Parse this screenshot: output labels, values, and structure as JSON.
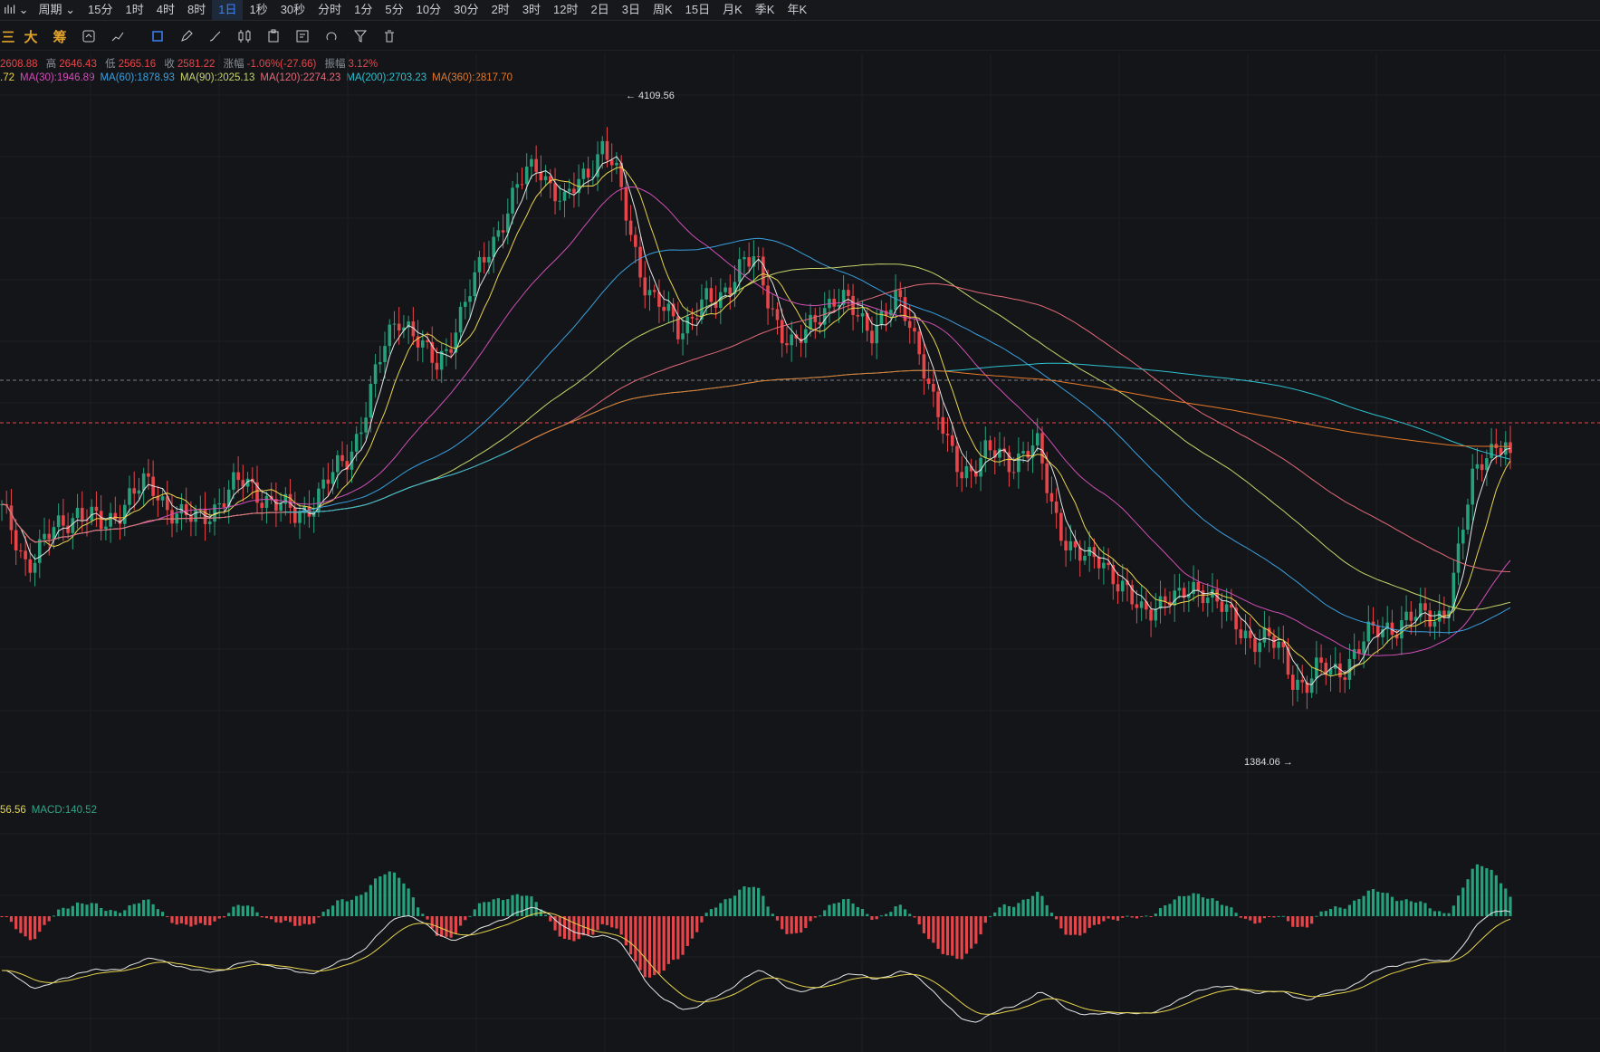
{
  "topbar": {
    "chart_type_icon": "candlestick-type-icon",
    "period_label": "周期",
    "intervals": [
      "15分",
      "1时",
      "4时",
      "8时",
      "1日",
      "1秒",
      "30秒",
      "分时",
      "1分",
      "5分",
      "10分",
      "30分",
      "2时",
      "3时",
      "12时",
      "2日",
      "3日",
      "周K",
      "15日",
      "月K",
      "季K",
      "年K"
    ],
    "active_interval": "1日"
  },
  "toolbar": {
    "text_tools": [
      "三",
      "大",
      "筹"
    ],
    "icons": [
      "compare-icon",
      "indicator-icon",
      "selection-icon",
      "pencil-icon",
      "brush-icon",
      "candle-settings-icon",
      "clipboard-icon",
      "template-icon",
      "magnet-icon",
      "filter-icon",
      "trash-icon"
    ]
  },
  "ohlc": {
    "open_label": "2608.88",
    "high_label": "高",
    "high": "2646.43",
    "low_label": "低",
    "low": "2565.16",
    "close_label": "收",
    "close": "2581.22",
    "change_label": "涨幅",
    "change": "-1.06%(-27.66)",
    "amplitude_label": "振幅",
    "amplitude": "3.12%"
  },
  "ma_legend": [
    {
      "text": ".72",
      "color": "#e8d44d"
    },
    {
      "text": "MA(30):1946.89",
      "color": "#d04fb7"
    },
    {
      "text": "MA(60):1878.93",
      "color": "#3aa0e0"
    },
    {
      "text": "MA(90):2025.13",
      "color": "#c8d46a"
    },
    {
      "text": "MA(120):2274.23",
      "color": "#e36a7a"
    },
    {
      "text": "MA(200):2703.23",
      "color": "#2ec2d0"
    },
    {
      "text": "MA(360):2817.70",
      "color": "#e8792a"
    }
  ],
  "macd_legend": [
    {
      "text": "56.56",
      "color": "#e8d44d"
    },
    {
      "text": "MACD:140.52",
      "color": "#2ea88a"
    }
  ],
  "annotations": {
    "high_marker": "← 4109.56",
    "low_marker": "1384.06 →"
  },
  "colors": {
    "up": "#26a17b",
    "down": "#e8454a",
    "background": "#131518"
  },
  "chart_data": {
    "type": "candlestick",
    "title": "",
    "price_range": [
      1300,
      4300
    ],
    "high": 4109.56,
    "low": 1384.06,
    "last_close": 2581.22,
    "series_close": [
      2300,
      2180,
      2050,
      2120,
      2200,
      2260,
      2310,
      2260,
      2220,
      2300,
      2380,
      2420,
      2400,
      2330,
      2280,
      2250,
      2290,
      2350,
      2410,
      2440,
      2400,
      2350,
      2310,
      2280,
      2330,
      2400,
      2480,
      2560,
      2700,
      2900,
      3100,
      3250,
      3180,
      3060,
      3000,
      3120,
      3260,
      3400,
      3560,
      3680,
      3800,
      3920,
      3980,
      3860,
      3760,
      3880,
      3960,
      4050,
      3920,
      3700,
      3450,
      3300,
      3250,
      3180,
      3250,
      3300,
      3290,
      3420,
      3520,
      3480,
      3300,
      3180,
      3090,
      3150,
      3260,
      3340,
      3300,
      3220,
      3180,
      3260,
      3300,
      3200,
      3050,
      2800,
      2600,
      2500,
      2520,
      2580,
      2560,
      2540,
      2600,
      2600,
      2350,
      2200,
      2100,
      2050,
      2080,
      2000,
      1900,
      1800,
      1850,
      1900,
      1860,
      1920,
      1940,
      1880,
      1780,
      1720,
      1700,
      1690,
      1620,
      1500,
      1480,
      1540,
      1520,
      1560,
      1640,
      1700,
      1740,
      1760,
      1780,
      1790,
      1800,
      1830,
      2100,
      2450,
      2600,
      2620,
      2581
    ]
  }
}
